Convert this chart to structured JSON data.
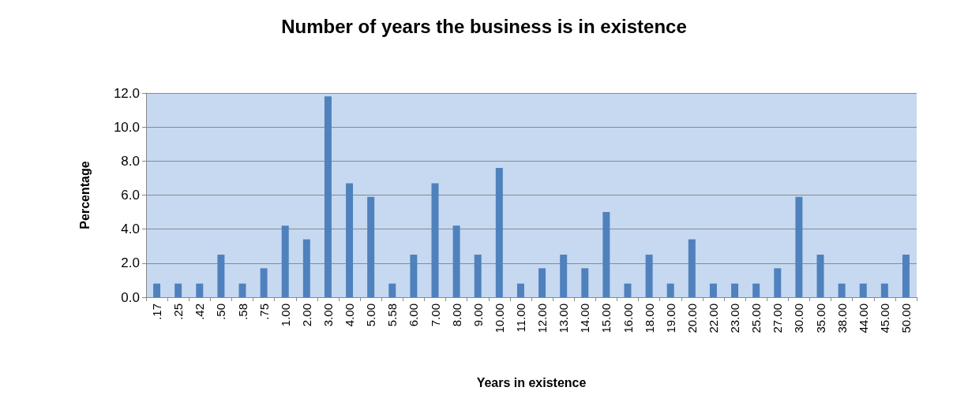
{
  "chart_data": {
    "type": "bar",
    "title": "Number of years the business is in existence",
    "xlabel": "Years in existence",
    "ylabel": "Percentage",
    "categories": [
      ".17",
      ".25",
      ".42",
      ".50",
      ".58",
      ".75",
      "1.00",
      "2.00",
      "3.00",
      "4.00",
      "5.00",
      "5.58",
      "6.00",
      "7.00",
      "8.00",
      "9.00",
      "10.00",
      "11.00",
      "12.00",
      "13.00",
      "14.00",
      "15.00",
      "16.00",
      "18.00",
      "19.00",
      "20.00",
      "22.00",
      "23.00",
      "25.00",
      "27.00",
      "30.00",
      "35.00",
      "38.00",
      "44.00",
      "45.00",
      "50.00"
    ],
    "values": [
      0.8,
      0.8,
      0.8,
      2.5,
      0.8,
      1.7,
      4.2,
      3.4,
      11.8,
      6.7,
      5.9,
      0.8,
      2.5,
      6.7,
      4.2,
      2.5,
      7.6,
      0.8,
      1.7,
      2.5,
      1.7,
      5.0,
      0.8,
      2.5,
      0.8,
      3.4,
      0.8,
      0.8,
      0.8,
      1.7,
      5.9,
      2.5,
      0.8,
      0.8,
      0.8,
      2.5
    ],
    "color": "#4f81bd",
    "ylim": [
      0,
      12
    ],
    "yticks": [
      {
        "value": 0,
        "label": "0.0"
      },
      {
        "value": 2,
        "label": "2.0"
      },
      {
        "value": 4,
        "label": "4.0"
      },
      {
        "value": 6,
        "label": "6.0"
      },
      {
        "value": 8,
        "label": "8.0"
      },
      {
        "value": 10,
        "label": "10.0"
      },
      {
        "value": 12,
        "label": "12.0"
      }
    ],
    "grid": "y"
  }
}
